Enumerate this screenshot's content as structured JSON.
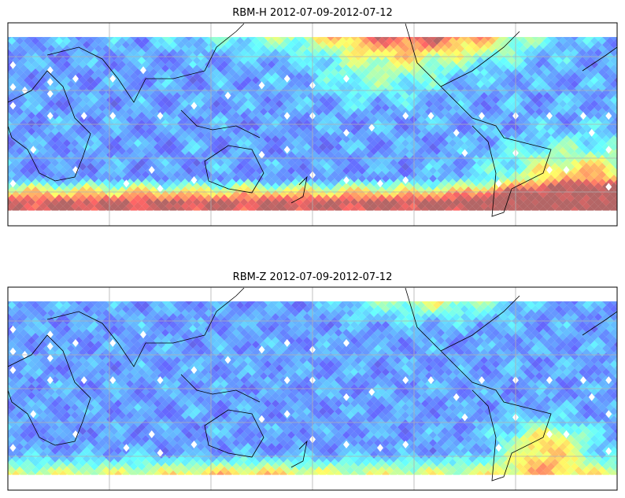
{
  "figure": {
    "panels": [
      {
        "title": "RBM-H 2012-07-09-2012-07-12",
        "field": "H"
      },
      {
        "title": "RBM-Z 2012-07-09-2012-07-12",
        "field": "Z"
      }
    ],
    "colormap": "jet",
    "gridlines": {
      "longitude_step_deg": 60,
      "latitude_step_deg": 20
    },
    "colors": {
      "grid": "#b0b0b0",
      "frame": "#000000",
      "marker": "#ffffff"
    }
  }
}
